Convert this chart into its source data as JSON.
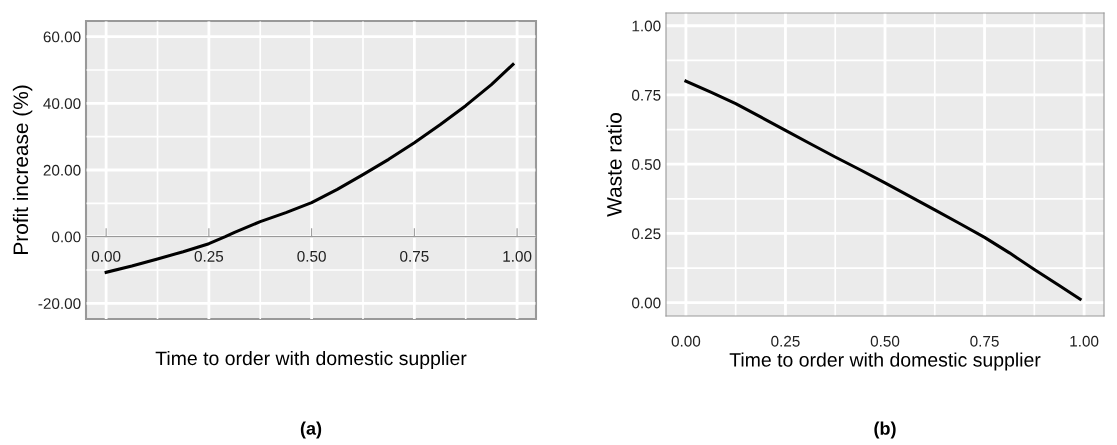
{
  "chart_data": [
    {
      "type": "line",
      "xlabel": "Time to order with domestic supplier",
      "ylabel": "Profit increase (%)",
      "annotations": [
        "(a)"
      ],
      "series": [
        {
          "color": "#000000",
          "x": [
            0,
            0.0625,
            0.125,
            0.1875,
            0.25,
            0.29,
            0.3125,
            0.375,
            0.4375,
            0.5,
            0.5625,
            0.625,
            0.6875,
            0.75,
            0.8125,
            0.875,
            0.9375,
            0.99
          ],
          "values": [
            -10.7,
            -8.8,
            -6.7,
            -4.5,
            -2.1,
            0,
            1.3,
            4.5,
            7.2,
            10.2,
            14.2,
            18.6,
            23.2,
            28.2,
            33.6,
            39.3,
            45.6,
            51.7
          ]
        }
      ],
      "xlim": [
        -0.049,
        1.046
      ],
      "ylim": [
        -24.7,
        64.7
      ],
      "xticks": [
        {
          "value": 0,
          "label": "0.00"
        },
        {
          "value": 0.25,
          "label": "0.25"
        },
        {
          "value": 0.5,
          "label": "0.50"
        },
        {
          "value": 0.75,
          "label": "0.75"
        },
        {
          "value": 1,
          "label": "1.00"
        }
      ],
      "yticks": [
        {
          "value": -20,
          "label": "-20.00"
        },
        {
          "value": 0,
          "label": "0.00"
        },
        {
          "value": 20,
          "label": "20.00"
        },
        {
          "value": 40,
          "label": "40.00"
        },
        {
          "value": 60,
          "label": "60.00"
        }
      ],
      "grid": true,
      "marker": "none",
      "line_style": "solid",
      "legend": false
    },
    {
      "type": "line",
      "xlabel": "Time to order with domestic supplier",
      "ylabel": "Waste ratio",
      "annotations": [
        "(b)"
      ],
      "series": [
        {
          "color": "#000000",
          "x": [
            0,
            0.0625,
            0.125,
            0.1875,
            0.25,
            0.3125,
            0.375,
            0.4375,
            0.5,
            0.5625,
            0.625,
            0.6875,
            0.75,
            0.8125,
            0.875,
            0.9375,
            0.99
          ],
          "values": [
            0.8,
            0.76,
            0.719,
            0.671,
            0.622,
            0.574,
            0.526,
            0.48,
            0.433,
            0.384,
            0.335,
            0.286,
            0.236,
            0.18,
            0.12,
            0.062,
            0.013
          ]
        }
      ],
      "xlim": [
        -0.05,
        1.05
      ],
      "ylim": [
        -0.048,
        1.046
      ],
      "xticks": [
        {
          "value": 0,
          "label": "0.00"
        },
        {
          "value": 0.25,
          "label": "0.25"
        },
        {
          "value": 0.5,
          "label": "0.50"
        },
        {
          "value": 0.75,
          "label": "0.75"
        },
        {
          "value": 1,
          "label": "1.00"
        }
      ],
      "yticks": [
        {
          "value": 0,
          "label": "0.00"
        },
        {
          "value": 0.25,
          "label": "0.25"
        },
        {
          "value": 0.5,
          "label": "0.50"
        },
        {
          "value": 0.75,
          "label": "0.75"
        },
        {
          "value": 1,
          "label": "1.00"
        }
      ],
      "grid": true,
      "marker": "none",
      "line_style": "solid",
      "legend": false
    }
  ]
}
